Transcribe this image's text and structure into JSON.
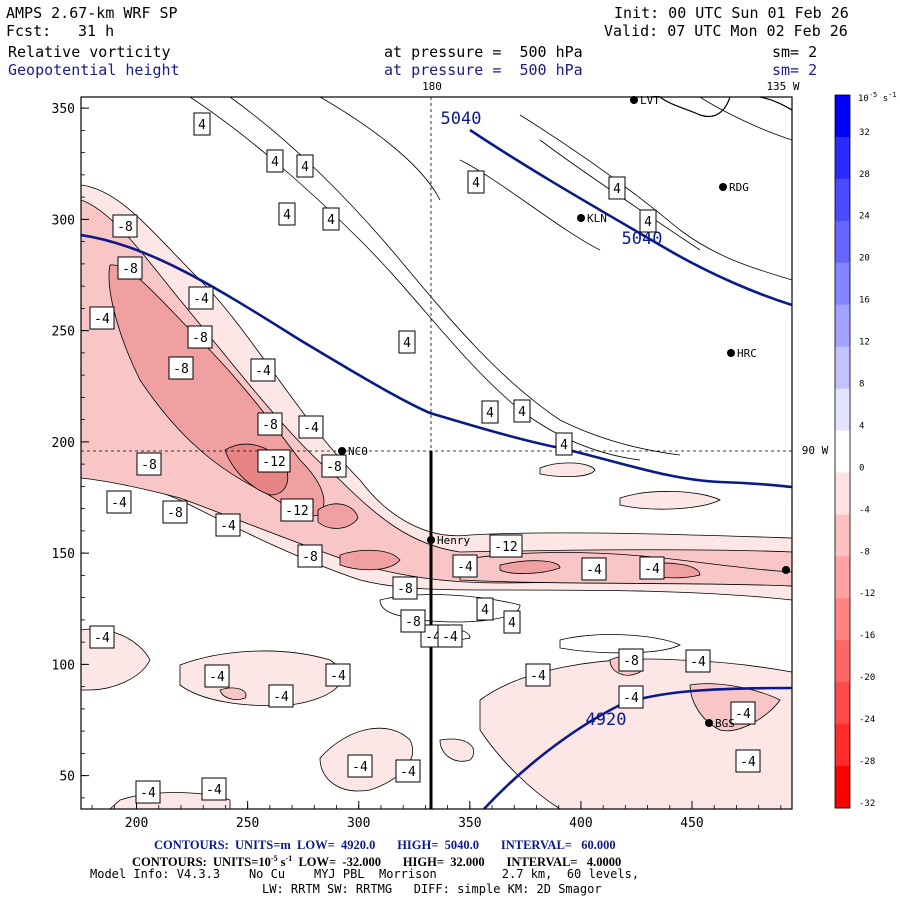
{
  "header": {
    "model": "AMPS 2.67-km WRF SP",
    "fcst_label": "Fcst:",
    "fcst_value": "31 h",
    "init": "Init: 00 UTC Sun 01 Feb 26",
    "valid": "Valid: 07 UTC Mon 02 Feb 26",
    "field1": "Relative vorticity",
    "field1_pressure": "at pressure =  500 hPa",
    "field1_sm": "sm= 2",
    "field2": "Geopotential height",
    "field2_pressure": "at pressure =  500 hPa",
    "field2_sm": "sm= 2",
    "lon_180": "180",
    "lon_135w": "135 W",
    "lat_90w": "90 W"
  },
  "footer": {
    "height_contours": "CONTOURS:  UNITS=m  LOW=  4920.0       HIGH=  5040.0       INTERVAL=   60.000",
    "vort_contours_prefix": "CONTOURS:  UNITS=10",
    "vort_contours_sup": "-5",
    "vort_contours_mid": " s",
    "vort_contours_sup2": "-1",
    "vort_contours_rest": "  LOW=  -32.000       HIGH=  32.000       INTERVAL=   4.0000",
    "model_info": "Model Info: V4.3.3    No Cu    MYJ PBL  Morrison         2.7 km,  60 levels,",
    "model_info2": "LW: RRTM SW: RRTMG   DIFF: simple KM: 2D Smagor"
  },
  "colors": {
    "height_contour": "#0a1a8a",
    "frame": "#000000",
    "neg_vort": [
      "#fde6e6",
      "#f8c6c6",
      "#f0a0a0",
      "#e98484"
    ]
  },
  "stations": [
    {
      "label": "LVT"
    },
    {
      "label": "RDG"
    },
    {
      "label": "KLN"
    },
    {
      "label": "HRC"
    },
    {
      "label": "NCO"
    },
    {
      "label": "Henry"
    },
    {
      "label": "BGS"
    }
  ],
  "chart_data": {
    "type": "contour",
    "xlim": [
      175,
      495
    ],
    "ylim": [
      35,
      355
    ],
    "x_ticks": [
      "200",
      "250",
      "300",
      "350",
      "400",
      "450"
    ],
    "y_ticks": [
      "50",
      "100",
      "150",
      "200",
      "250",
      "300",
      "350"
    ],
    "height_contour_labels": [
      "5040",
      "5040",
      "4920"
    ],
    "vorticity_labels": [
      "4",
      "4",
      "4",
      "4",
      "4",
      "4",
      "4",
      "4",
      "4",
      "4",
      "4",
      "4",
      "4",
      "4",
      "-8",
      "-8",
      "-4",
      "-8",
      "-4",
      "-8",
      "-4",
      "-8",
      "-4",
      "-8",
      "-12",
      "-8",
      "-4",
      "-12",
      "-8",
      "-4",
      "-8",
      "-4",
      "-8",
      "-12",
      "-4",
      "-4",
      "-4",
      "-4",
      "-8",
      "-4",
      "-4",
      "-4",
      "-4",
      "-8",
      "-4",
      "-4",
      "-4",
      "-4",
      "-4"
    ],
    "colorbar": {
      "units": "10^-5 s^-1",
      "ticks": [
        "32",
        "28",
        "24",
        "20",
        "16",
        "12",
        "8",
        "4",
        "0",
        "-4",
        "-8",
        "-12",
        "-16",
        "-20",
        "-24",
        "-28",
        "-32"
      ],
      "colors": [
        "#0000ff",
        "#2b2bff",
        "#4a4aff",
        "#6666ff",
        "#8585ff",
        "#a3a3ff",
        "#c2c2ff",
        "#e3e3ff",
        "#ffffff",
        "#ffe3e3",
        "#ffc2c2",
        "#ffa3a3",
        "#ff8585",
        "#ff6666",
        "#ff4a4a",
        "#ff2b2b",
        "#ff0000"
      ]
    },
    "cross_section_x": 335
  }
}
